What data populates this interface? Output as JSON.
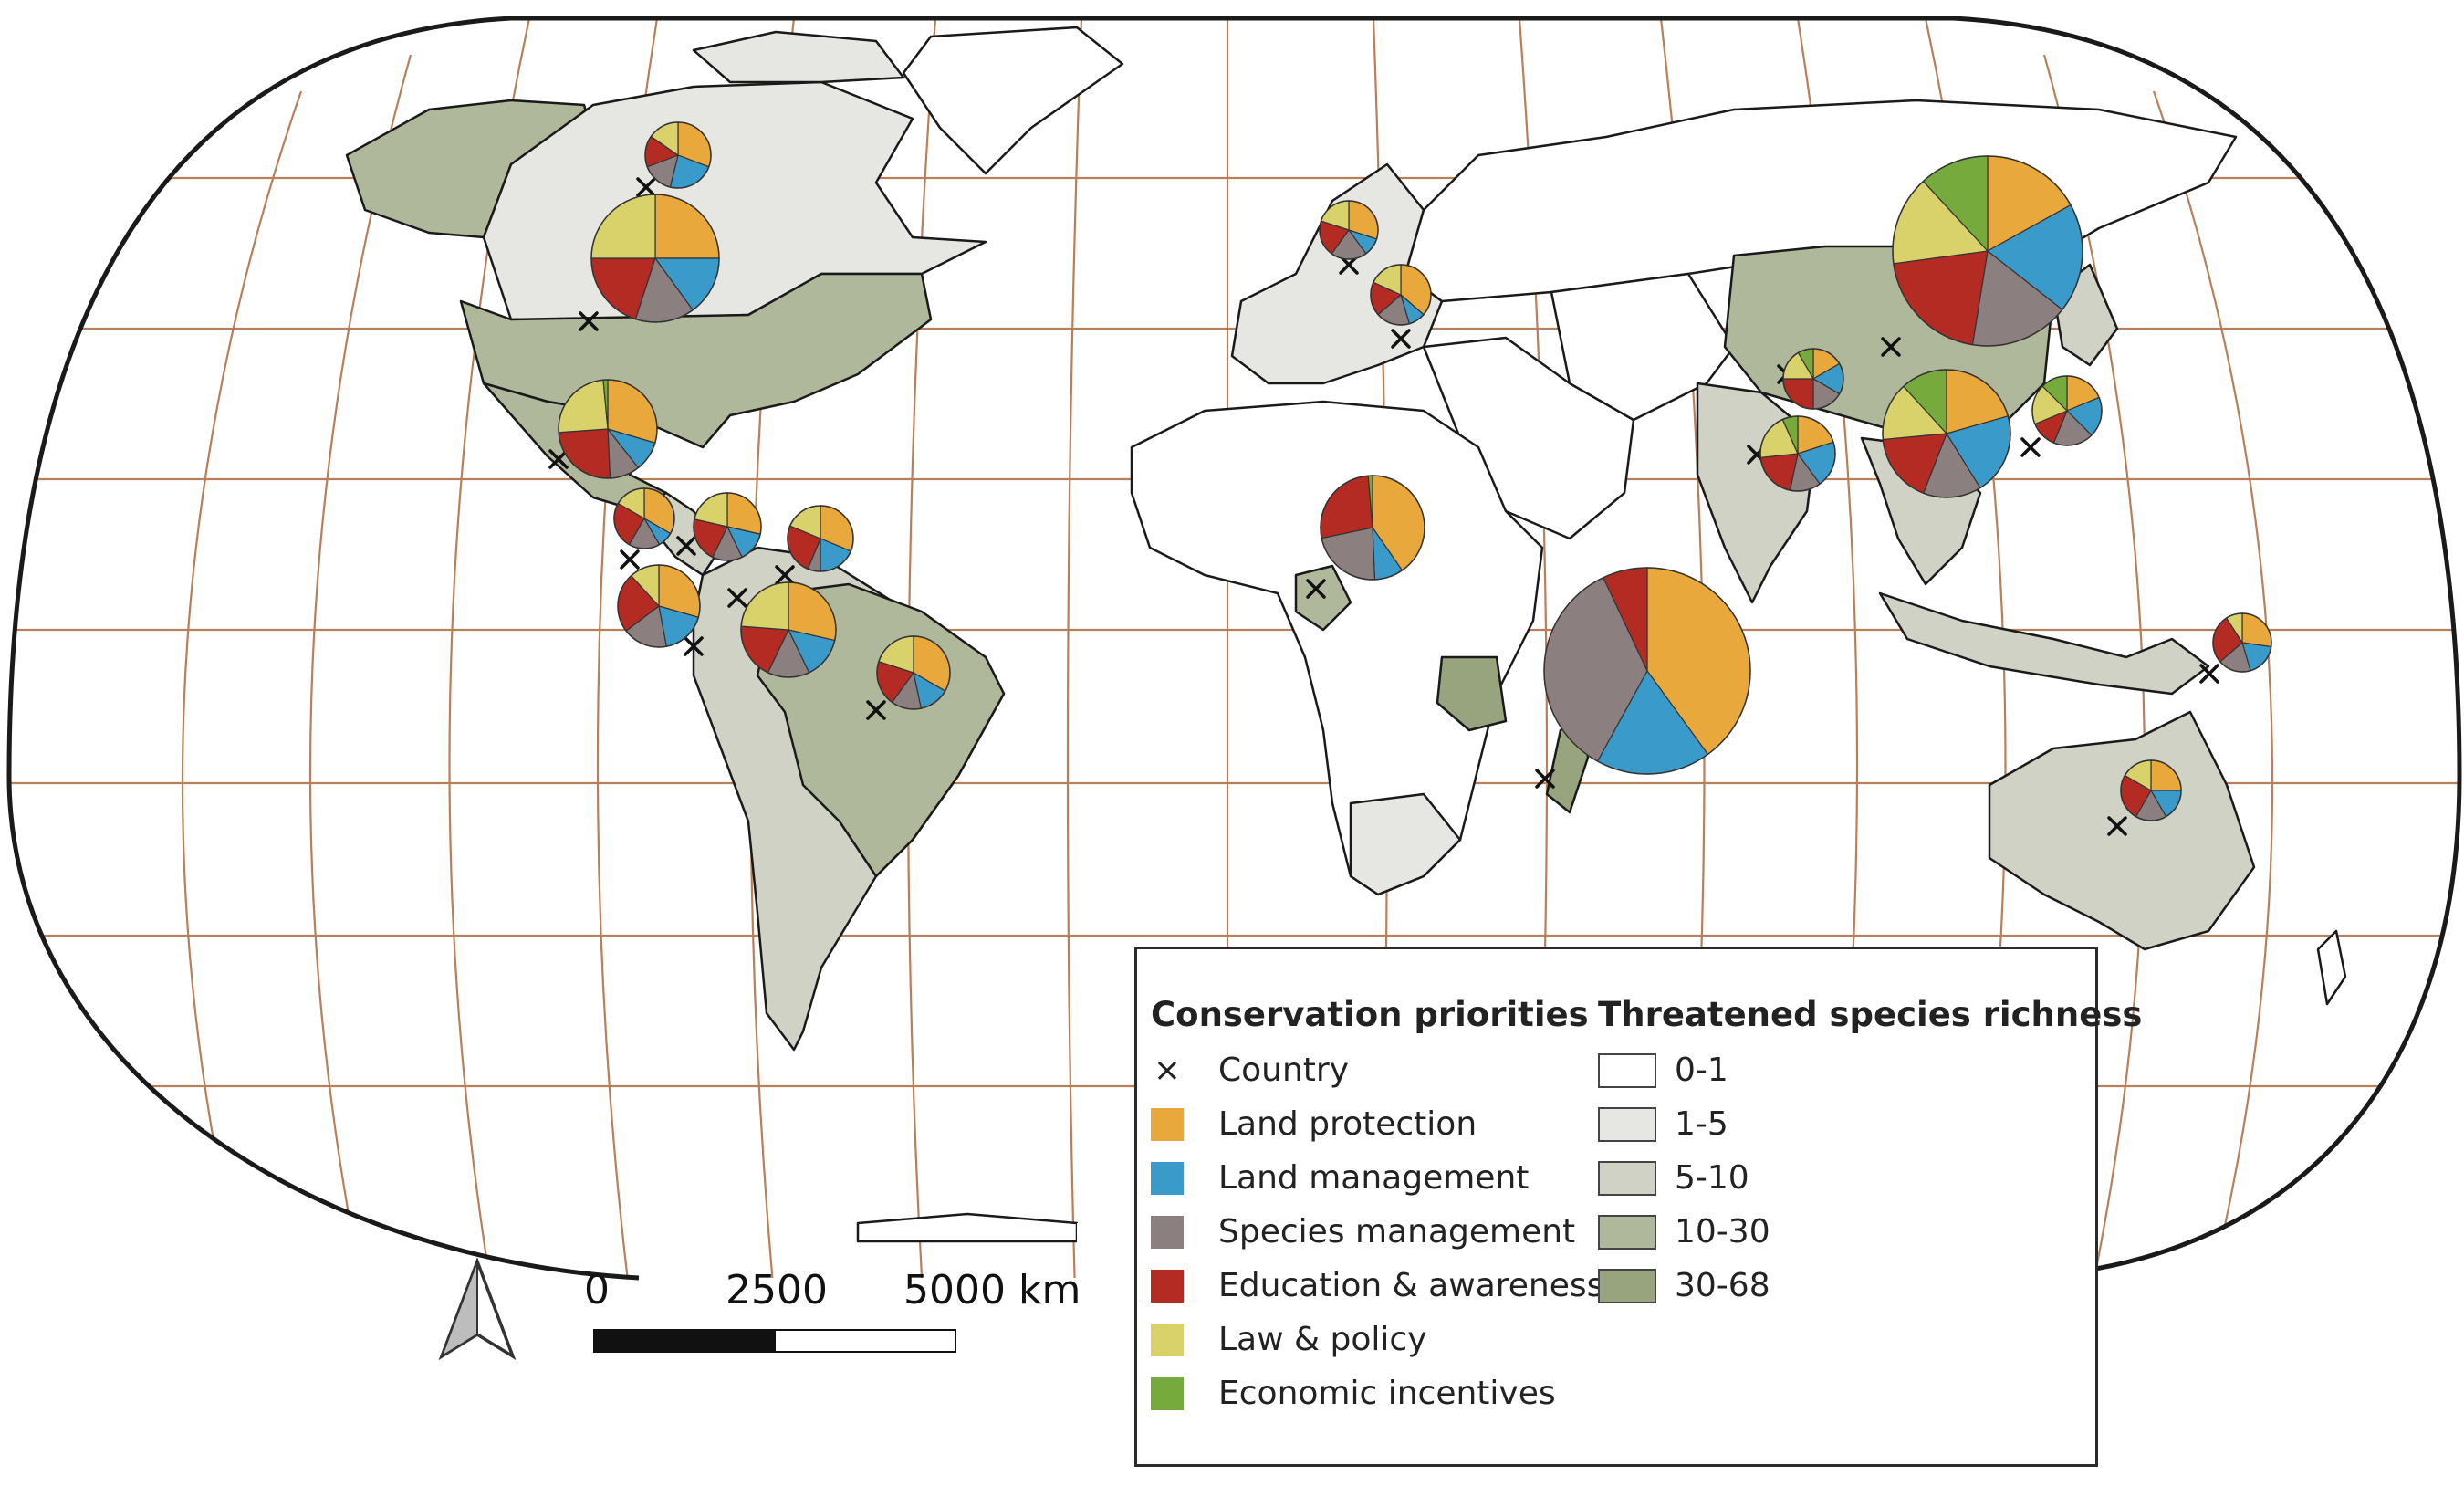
{
  "legend": {
    "priorities_title": "Conservation priorities",
    "country_label": "Country",
    "country_symbol": "×",
    "categories": [
      {
        "label": "Land protection",
        "color": "#e9a83b"
      },
      {
        "label": "Land management",
        "color": "#3a9bcb"
      },
      {
        "label": "Species management",
        "color": "#8c7f80"
      },
      {
        "label": "Education & awareness",
        "color": "#b42b24"
      },
      {
        "label": "Law & policy",
        "color": "#d9d16a"
      },
      {
        "label": "Economic incentives",
        "color": "#76aa3c"
      }
    ],
    "richness_title": "Threatened species richness",
    "richness_classes": [
      {
        "label": "0-1",
        "color": "#ffffff"
      },
      {
        "label": "1-5",
        "color": "#e6e6e2"
      },
      {
        "label": "5-10",
        "color": "#cfd2c4"
      },
      {
        "label": "10-30",
        "color": "#b0b89b"
      },
      {
        "label": "30-68",
        "color": "#98a47e"
      }
    ]
  },
  "scale_bar": {
    "labels": [
      "0",
      "2500",
      "5000 km"
    ]
  },
  "north_arrow": {
    "icon": "north-arrow-icon"
  },
  "map": {
    "graticule_color": "#b77f5a",
    "outline_color": "#1a1a1a",
    "country_markers": [
      {
        "name": "canada-north-marker"
      },
      {
        "name": "usa-marker"
      },
      {
        "name": "mexico-marker"
      },
      {
        "name": "costa-rica-marker"
      },
      {
        "name": "panama-marker"
      },
      {
        "name": "colombia-marker"
      },
      {
        "name": "venezuela-marker"
      },
      {
        "name": "ecuador-marker"
      },
      {
        "name": "brazil-marker"
      },
      {
        "name": "cameroon-marker"
      },
      {
        "name": "madagascar-marker"
      },
      {
        "name": "india-marker"
      },
      {
        "name": "china-marker"
      },
      {
        "name": "nepal-marker"
      },
      {
        "name": "philippines-marker"
      },
      {
        "name": "papua-new-guinea-marker"
      },
      {
        "name": "australia-marker"
      },
      {
        "name": "poland-marker"
      },
      {
        "name": "bulgaria-marker"
      }
    ],
    "pies": [
      {
        "name": "canada-pie",
        "values": [
          4,
          3,
          2,
          2,
          2,
          0
        ]
      },
      {
        "name": "usa-pie",
        "values": [
          5,
          3,
          3,
          4,
          5,
          0
        ]
      },
      {
        "name": "mexico-pie",
        "values": [
          6,
          2,
          2,
          5,
          5,
          0.3
        ]
      },
      {
        "name": "costa-rica-pie",
        "values": [
          4,
          1,
          2,
          3,
          2,
          0
        ]
      },
      {
        "name": "panama-pie",
        "values": [
          4,
          2,
          2,
          3,
          3,
          0
        ]
      },
      {
        "name": "venezuela-pie",
        "values": [
          5,
          3,
          1,
          4,
          3,
          0
        ]
      },
      {
        "name": "ecuador-pie",
        "values": [
          5,
          3,
          3,
          4,
          2,
          0
        ]
      },
      {
        "name": "colombia-pie",
        "values": [
          6,
          3,
          3,
          4,
          5,
          0
        ]
      },
      {
        "name": "brazil-pie",
        "values": [
          5,
          2,
          2,
          3,
          3,
          0
        ]
      },
      {
        "name": "poland-pie",
        "values": [
          3,
          1,
          2,
          2,
          2,
          0
        ]
      },
      {
        "name": "bulgaria-pie",
        "values": [
          4,
          1,
          2,
          2,
          2,
          0
        ]
      },
      {
        "name": "cameroon-pie",
        "values": [
          9,
          2,
          5,
          6,
          0,
          0.3
        ]
      },
      {
        "name": "madagascar-pie",
        "values": [
          40,
          18,
          35,
          7,
          0,
          0
        ]
      },
      {
        "name": "nepal-pie",
        "values": [
          2,
          2,
          2,
          3,
          2,
          1
        ]
      },
      {
        "name": "india-pie",
        "values": [
          3,
          3,
          2,
          3,
          3,
          1
        ]
      },
      {
        "name": "china-pie",
        "values": [
          10,
          11,
          10,
          12,
          9,
          7
        ]
      },
      {
        "name": "southeast-asia-pie",
        "values": [
          7,
          7,
          5,
          6,
          5,
          4
        ]
      },
      {
        "name": "philippines-pie",
        "values": [
          3,
          3,
          3,
          2,
          3,
          2
        ]
      },
      {
        "name": "papua-new-guinea-pie",
        "values": [
          3,
          2,
          2,
          3,
          1,
          0
        ]
      },
      {
        "name": "australia-pie",
        "values": [
          3,
          2,
          2,
          3,
          2,
          0
        ]
      }
    ]
  }
}
